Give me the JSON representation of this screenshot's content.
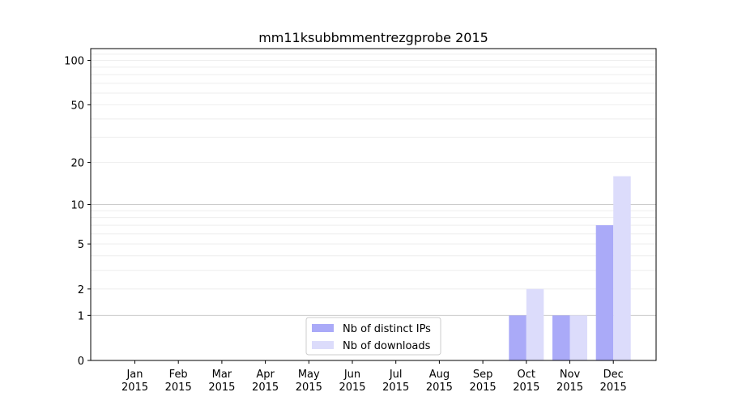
{
  "chart_data": {
    "type": "bar",
    "title": "mm11ksubbmmentrezgprobe 2015",
    "xlabel": "",
    "ylabel": "",
    "categories": [
      [
        "Jan",
        "2015"
      ],
      [
        "Feb",
        "2015"
      ],
      [
        "Mar",
        "2015"
      ],
      [
        "Apr",
        "2015"
      ],
      [
        "May",
        "2015"
      ],
      [
        "Jun",
        "2015"
      ],
      [
        "Jul",
        "2015"
      ],
      [
        "Aug",
        "2015"
      ],
      [
        "Sep",
        "2015"
      ],
      [
        "Oct",
        "2015"
      ],
      [
        "Nov",
        "2015"
      ],
      [
        "Dec",
        "2015"
      ]
    ],
    "series": [
      {
        "name": "Nb of distinct IPs",
        "color": "#aaaaf8",
        "values": [
          0,
          0,
          0,
          0,
          0,
          0,
          0,
          0,
          0,
          1,
          1,
          7
        ]
      },
      {
        "name": "Nb of downloads",
        "color": "#dcdcfb",
        "values": [
          0,
          0,
          0,
          0,
          0,
          0,
          0,
          0,
          0,
          2,
          1,
          16
        ]
      }
    ],
    "y_scale": "log(1+y)",
    "ylim": [
      0,
      120
    ],
    "yticks": [
      0,
      1,
      2,
      5,
      10,
      20,
      50,
      100
    ],
    "grid": true,
    "legend_position": "bottom-center"
  }
}
